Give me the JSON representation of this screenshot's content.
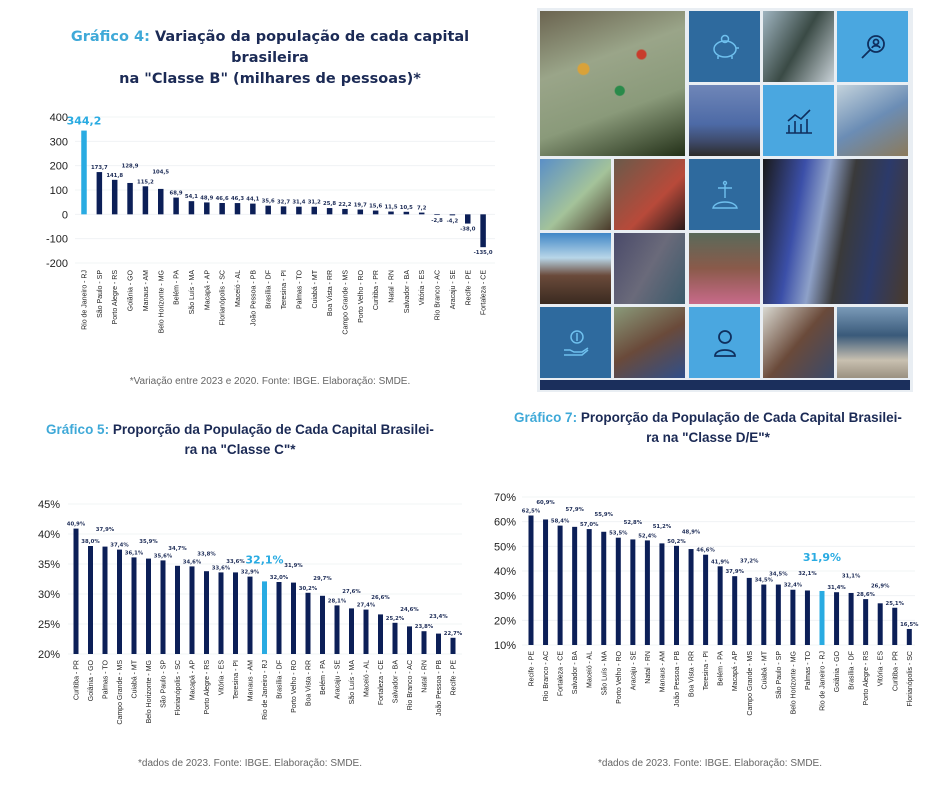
{
  "colors": {
    "bar": "#0c1f57",
    "highlight": "#29abe2",
    "title_prefix": "#3fa9d8",
    "title": "#1b2a55"
  },
  "collage": {
    "icons": [
      "piggy-bank-icon",
      "magnifier-person-icon",
      "growth-chart-icon",
      "christ-redeemer-icon",
      "hand-dollar-icon",
      "person-icon"
    ]
  },
  "chart_data": [
    {
      "type": "bar",
      "title_prefix": "Gráfico 4:",
      "title": "Variação da população de cada capital brasileira na \"Classe B\" (milhares de pessoas)*",
      "title_line1": "Variação da população de cada capital brasileira",
      "title_line2": "na \"Classe B\" (milhares de pessoas)*",
      "footnote": "*Variação entre 2023 e 2020. Fonte: IBGE. Elaboração: SMDE.",
      "ylim": [
        -200,
        400
      ],
      "yticks": [
        400,
        300,
        200,
        100,
        0,
        -100,
        -200
      ],
      "ytick_labels": [
        "400",
        "300",
        "200",
        "100",
        "0",
        "-100",
        "-200"
      ],
      "highlight_index": 0,
      "categories": [
        "Rio de Janeiro - RJ",
        "São Paulo - SP",
        "Porto Alegre - RS",
        "Goiânia - GO",
        "Manaus - AM",
        "Belo Horizonte - MG",
        "Belém - PA",
        "São Luís - MA",
        "Macapá - AP",
        "Florianópolis - SC",
        "Maceió - AL",
        "João Pessoa - PB",
        "Brasília - DF",
        "Teresina - PI",
        "Palmas - TO",
        "Cuiabá - MT",
        "Boa Vista - RR",
        "Campo Grande - MS",
        "Porto Velho - RO",
        "Curitiba - PR",
        "Natal - RN",
        "Salvador - BA",
        "Vitória - ES",
        "Rio Branco - AC",
        "Aracaju - SE",
        "Recife - PE",
        "Fortaleza - CE"
      ],
      "values": [
        344.2,
        173.7,
        141.8,
        128.9,
        115.2,
        104.5,
        68.9,
        54.1,
        48.9,
        46.6,
        46.3,
        44.1,
        35.6,
        32.7,
        31.4,
        31.2,
        25.8,
        22.2,
        19.7,
        15.6,
        11.5,
        10.5,
        7.2,
        -2.8,
        -4.2,
        -38.0,
        -135.0
      ],
      "value_labels": [
        "344,2",
        "173,7",
        "141,8",
        "128,9",
        "115,2",
        "104,5",
        "68,9",
        "54,1",
        "48,9",
        "46,6",
        "46,3",
        "44,1",
        "35,6",
        "32,7",
        "31,4",
        "31,2",
        "25,8",
        "22,2",
        "19,7",
        "15,6",
        "11,5",
        "10,5",
        "7,2",
        "-2,8",
        "-4,2",
        "-38,0",
        "-135,0"
      ],
      "grid": true
    },
    {
      "type": "bar",
      "title_prefix": "Gráfico 5:",
      "title": "Proporção da População de Cada Capital Brasileira na \"Classe C\"*",
      "title_line1": "Proporção da População de Cada Capital Brasilei-",
      "title_line2": "ra na \"Classe C\"*",
      "footnote": "*dados de 2023. Fonte: IBGE. Elaboração: SMDE.",
      "ylim": [
        20,
        45
      ],
      "yticks": [
        45,
        40,
        35,
        30,
        25,
        20
      ],
      "ytick_labels": [
        "45%",
        "40%",
        "35%",
        "30%",
        "25%",
        "20%"
      ],
      "highlight_index": 13,
      "categories": [
        "Curitiba - PR",
        "Goiânia - GO",
        "Palmas - TO",
        "Campo Grande - MS",
        "Cuiabá - MT",
        "Belo Horizonte - MG",
        "São Paulo - SP",
        "Florianópolis - SC",
        "Macapá - AP",
        "Porto Alegre - RS",
        "Vitória - ES",
        "Teresina - PI",
        "Manaus - AM",
        "Rio de Janeiro - RJ",
        "Brasília - DF",
        "Porto Velho - RO",
        "Boa Vista - RR",
        "Belém - PA",
        "Aracaju - SE",
        "São Luís - MA",
        "Maceió - AL",
        "Fortaleza - CE",
        "Salvador - BA",
        "Rio Branco - AC",
        "Natal - RN",
        "João Pessoa - PB",
        "Recife - PE"
      ],
      "values": [
        40.9,
        38.0,
        37.9,
        37.4,
        36.1,
        35.9,
        35.6,
        34.7,
        34.6,
        33.8,
        33.6,
        33.6,
        32.9,
        32.1,
        32.0,
        31.9,
        30.2,
        29.7,
        28.1,
        27.6,
        27.4,
        26.6,
        25.2,
        24.6,
        23.8,
        23.4,
        22.7
      ],
      "value_labels": [
        "40,9%",
        "38,0%",
        "37,9%",
        "37,4%",
        "36,1%",
        "35,9%",
        "35,6%",
        "34,7%",
        "34,6%",
        "33,8%",
        "33,6%",
        "33,6%",
        "32,9%",
        "32,1%",
        "32,0%",
        "31,9%",
        "30,2%",
        "29,7%",
        "28,1%",
        "27,6%",
        "27,4%",
        "26,6%",
        "25,2%",
        "24,6%",
        "23,8%",
        "23,4%",
        "22,7%"
      ],
      "grid": true
    },
    {
      "type": "bar",
      "title_prefix": "Gráfico 7:",
      "title": "Proporção da População de Cada Capital Brasileira na \"Classe D/E\"*",
      "title_line1": "Proporção da População de Cada Capital Brasilei-",
      "title_line2": "ra na \"Classe D/E\"*",
      "footnote": "*dados de 2023. Fonte: IBGE. Elaboração: SMDE.",
      "ylim": [
        10,
        70
      ],
      "yticks": [
        70,
        60,
        50,
        40,
        30,
        20,
        10
      ],
      "ytick_labels": [
        "70%",
        "60%",
        "50%",
        "40%",
        "30%",
        "20%",
        "10%"
      ],
      "highlight_index": 20,
      "categories": [
        "Recife - PE",
        "Rio Branco - AC",
        "Fortaleza - CE",
        "Salvador - BA",
        "Maceió - AL",
        "São Luís - MA",
        "Porto Velho - RO",
        "Aracaju - SE",
        "Natal - RN",
        "Manaus - AM",
        "João Pessoa - PB",
        "Boa Vista - RR",
        "Teresina - PI",
        "Belém - PA",
        "Macapá - AP",
        "Campo Grande - MS",
        "Cuiabá - MT",
        "São Paulo - SP",
        "Belo Horizonte - MG",
        "Palmas - TO",
        "Rio de Janeiro - RJ",
        "Goiânia - GO",
        "Brasília - DF",
        "Porto Alegre - RS",
        "Vitória - ES",
        "Curitiba - PR",
        "Florianópolis - SC"
      ],
      "values": [
        62.5,
        60.9,
        58.4,
        57.9,
        57.0,
        55.9,
        53.5,
        52.8,
        52.4,
        51.2,
        50.2,
        48.9,
        46.6,
        41.9,
        37.9,
        37.2,
        34.5,
        34.5,
        32.4,
        32.1,
        31.9,
        31.4,
        31.1,
        28.6,
        26.9,
        25.1,
        16.5
      ],
      "value_labels": [
        "62,5%",
        "60,9%",
        "58,4%",
        "57,9%",
        "57,0%",
        "55,9%",
        "53,5%",
        "52,8%",
        "52,4%",
        "51,2%",
        "50,2%",
        "48,9%",
        "46,6%",
        "41,9%",
        "37,9%",
        "37,2%",
        "34,5%",
        "34,5%",
        "32,4%",
        "32,1%",
        "31,9%",
        "31,4%",
        "31,1%",
        "28,6%",
        "26,9%",
        "25,1%",
        "16,5%"
      ],
      "grid": true
    }
  ]
}
